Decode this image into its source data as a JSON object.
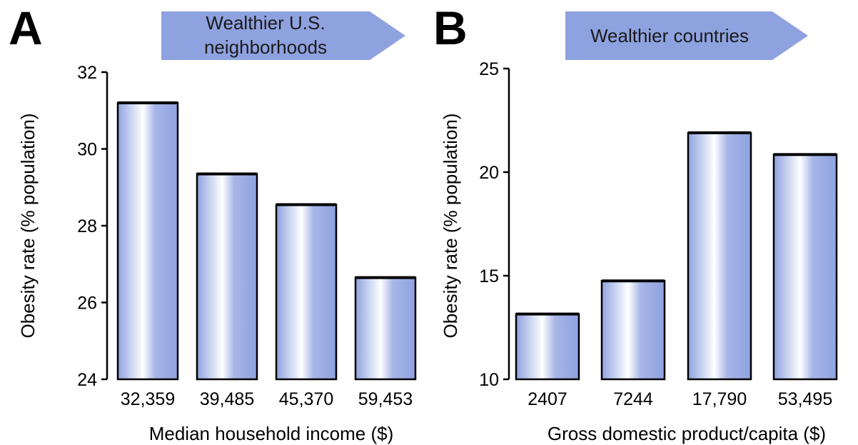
{
  "panels": [
    {
      "letter": "A",
      "banner_lines": [
        "Wealthier U.S.",
        "neighborhoods"
      ],
      "chart_data": {
        "type": "bar",
        "categories": [
          "32,359",
          "39,485",
          "45,370",
          "59,453"
        ],
        "values": [
          31.2,
          29.35,
          28.55,
          26.65
        ],
        "xlabel": "Median household income ($)",
        "ylabel": "Obesity rate (% population)",
        "ylim": [
          24,
          32
        ],
        "yticks": [
          24,
          26,
          28,
          30,
          32
        ],
        "grid": false
      }
    },
    {
      "letter": "B",
      "banner_lines": [
        "Wealthier countries"
      ],
      "chart_data": {
        "type": "bar",
        "categories": [
          "2407",
          "7244",
          "17,790",
          "53,495"
        ],
        "values": [
          13.15,
          14.75,
          21.9,
          20.85
        ],
        "xlabel": "Gross domestic product/capita ($)",
        "ylabel": "Obesity rate (% population)",
        "ylim": [
          10,
          25
        ],
        "yticks": [
          10,
          15,
          20,
          25
        ],
        "grid": false
      }
    }
  ],
  "colors": {
    "bar_base": "#8fa2e0",
    "bar_highlight": "#ffffff",
    "banner_fill": "#8fa2e0",
    "axis": "#000000"
  }
}
